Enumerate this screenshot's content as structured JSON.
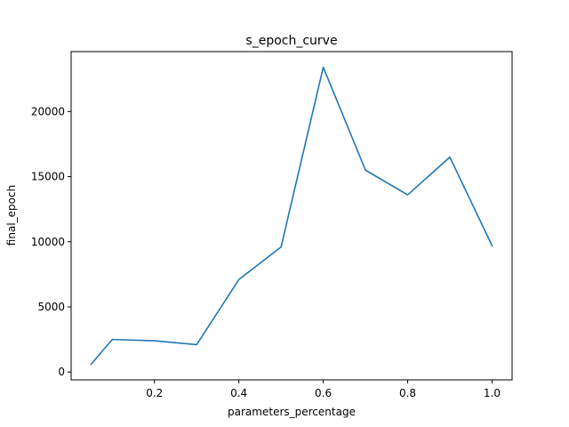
{
  "chart_data": {
    "type": "line",
    "title": "s_epoch_curve",
    "xlabel": "parameters_percentage",
    "ylabel": "final_epoch",
    "xlim": [
      0.0025,
      1.0475
    ],
    "ylim": [
      -600,
      24600
    ],
    "xticks": [
      0.2,
      0.4,
      0.6,
      0.8,
      1.0
    ],
    "xtick_labels": [
      "0.2",
      "0.4",
      "0.6",
      "0.8",
      "1.0"
    ],
    "yticks": [
      0,
      5000,
      10000,
      15000,
      20000
    ],
    "ytick_labels": [
      "0",
      "5000",
      "10000",
      "15000",
      "20000"
    ],
    "grid": false,
    "legend": null,
    "series": [
      {
        "color": "#1f77b4",
        "x": [
          0.05,
          0.1,
          0.2,
          0.3,
          0.4,
          0.5,
          0.6,
          0.7,
          0.8,
          0.9,
          1.0
        ],
        "y": [
          600,
          2500,
          2400,
          2100,
          7100,
          9600,
          23400,
          15500,
          13600,
          16500,
          9700
        ]
      }
    ]
  }
}
